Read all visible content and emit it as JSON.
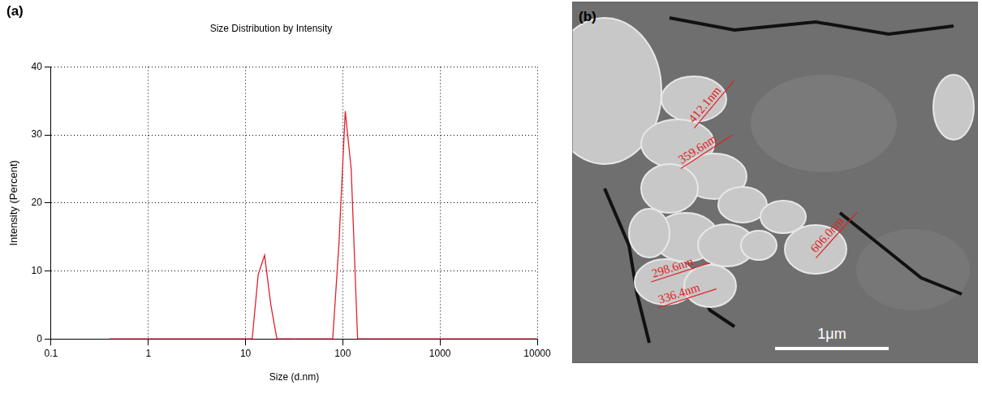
{
  "chart_data": {
    "type": "line",
    "panel_label": "(a)",
    "title": "Size Distribution by Intensity",
    "x_label": "Size (d.nm)",
    "y_label": "Intensity (Percent)",
    "x": [
      0.4,
      1,
      2,
      5,
      10,
      11.7,
      13.5,
      15.7,
      18.2,
      21.0,
      30,
      50,
      78.8,
      91.3,
      106,
      122,
      142,
      200,
      500,
      1000,
      2000,
      5000,
      10000
    ],
    "series": [
      {
        "name": "Intensity",
        "color": "#e0202a",
        "values": [
          0,
          0,
          0,
          0,
          0,
          0,
          9.5,
          12.3,
          5,
          0,
          0,
          0,
          0,
          14,
          33.5,
          25,
          0,
          0,
          0,
          0,
          0,
          0,
          0
        ]
      }
    ],
    "log": "x",
    "xlim": [
      0.1,
      10000
    ],
    "xticks": [
      0.1,
      1,
      10,
      100,
      1000,
      10000
    ],
    "ylim": [
      0,
      40
    ],
    "yticks": [
      0,
      10,
      20,
      30,
      40
    ],
    "grid": true
  },
  "image_panel": {
    "panel_label": "(b)",
    "measurements": [
      "412.1nm",
      "359.6nm",
      "298.6nm",
      "336.4nm",
      "606.0nm"
    ],
    "scale_bar": "1μm"
  }
}
